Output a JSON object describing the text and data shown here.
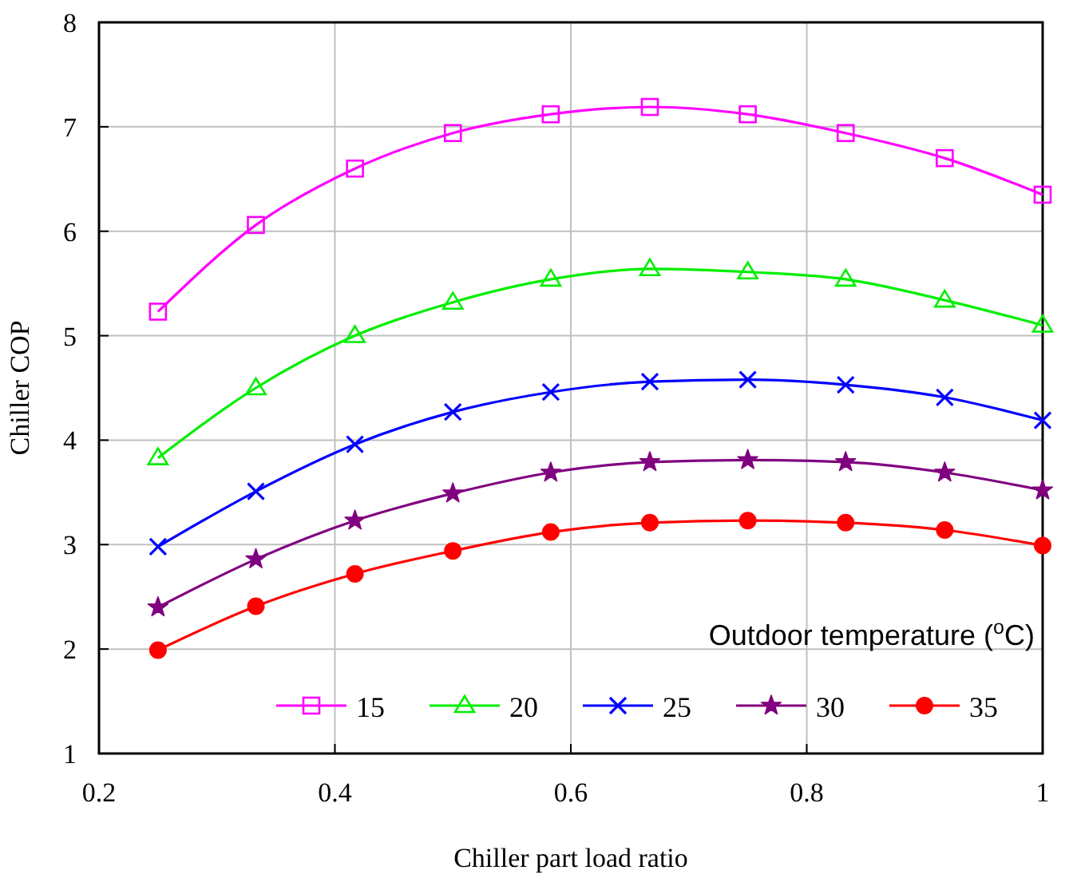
{
  "chart_data": {
    "type": "line",
    "xlabel": "Chiller part load ratio",
    "ylabel": "Chiller COP",
    "legend_title": "Outdoor temperature ($^{o}$C)",
    "legend": "bottom right",
    "grid": true,
    "x": [
      0.25,
      0.333,
      0.417,
      0.5,
      0.583,
      0.667,
      0.75,
      0.833,
      0.917,
      1.0
    ],
    "xlim": [
      0.2,
      1
    ],
    "xticks": [
      0.2,
      0.4,
      0.6,
      0.8,
      1
    ],
    "ylim": [
      1,
      8
    ],
    "yticks": [
      1,
      2,
      3,
      4,
      5,
      6,
      7,
      8
    ],
    "series": [
      {
        "name": "15",
        "color": "#ff00ff",
        "marker": "square",
        "values": [
          5.23,
          6.06,
          6.6,
          6.94,
          7.12,
          7.19,
          7.12,
          6.94,
          6.7,
          6.35
        ]
      },
      {
        "name": "20",
        "color": "#00ee00",
        "marker": "triangle",
        "values": [
          3.83,
          4.5,
          5.0,
          5.32,
          5.54,
          5.64,
          5.61,
          5.54,
          5.34,
          5.1
        ]
      },
      {
        "name": "25",
        "color": "#0000ff",
        "marker": "cross",
        "values": [
          2.98,
          3.51,
          3.96,
          4.27,
          4.46,
          4.56,
          4.58,
          4.53,
          4.41,
          4.19
        ]
      },
      {
        "name": "30",
        "color": "#800080",
        "marker": "star",
        "values": [
          2.4,
          2.86,
          3.23,
          3.49,
          3.69,
          3.79,
          3.81,
          3.79,
          3.69,
          3.52
        ]
      },
      {
        "name": "35",
        "color": "#ff0000",
        "marker": "circle",
        "values": [
          1.99,
          2.41,
          2.72,
          2.94,
          3.12,
          3.21,
          3.23,
          3.21,
          3.14,
          2.99
        ]
      }
    ]
  }
}
